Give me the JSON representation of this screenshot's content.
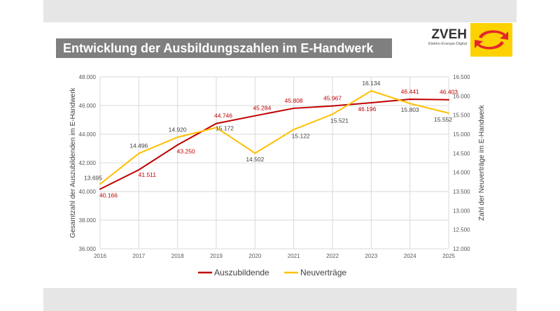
{
  "title": "Entwicklung der Ausbildungszahlen im E-Handwerk",
  "logo": {
    "text": "ZVEH",
    "subtitle": "Elektro-Energie-Digital",
    "color": "#fcd200"
  },
  "chart_data": {
    "type": "line",
    "categories": [
      "2016",
      "2017",
      "2018",
      "2019",
      "2020",
      "2021",
      "2022",
      "2023",
      "2024",
      "2025"
    ],
    "series": [
      {
        "name": "Auszubildende",
        "axis": "left",
        "color": "#c00000",
        "values": [
          40166,
          41511,
          43250,
          44746,
          45284,
          45808,
          45967,
          46196,
          46441,
          46403
        ],
        "labels": [
          "40.166",
          "41.511",
          "43.250",
          "44.746",
          "45.284",
          "45.808",
          "45.967",
          "46.196",
          "46.441",
          "46.403"
        ]
      },
      {
        "name": "Neuverträge",
        "axis": "right",
        "color": "#ffc000",
        "values": [
          13695,
          14496,
          14920,
          15172,
          14502,
          15122,
          15521,
          16134,
          15803,
          15552
        ],
        "labels": [
          "13.695",
          "14.496",
          "14.920",
          "15.172",
          "14.502",
          "15.122",
          "15.521",
          "16.134",
          "15.803",
          "15.552"
        ]
      }
    ],
    "ylabel": "Gesamtzahl der Auszubildenden im E-Handwerk",
    "ylabel_right": "Zahl der Neuverträge im E-Handwerk",
    "ylim": [
      36000,
      48000
    ],
    "ylim_right": [
      12000,
      16500
    ],
    "yticks": [
      "36.000",
      "38.000",
      "40.000",
      "42.000",
      "44.000",
      "46.000",
      "48.000"
    ],
    "yticks_right": [
      "12.000",
      "12.500",
      "13.000",
      "13.500",
      "14.000",
      "14.500",
      "15.000",
      "15.500",
      "16.000",
      "16.500"
    ],
    "grid": true,
    "legend": "bottom"
  }
}
